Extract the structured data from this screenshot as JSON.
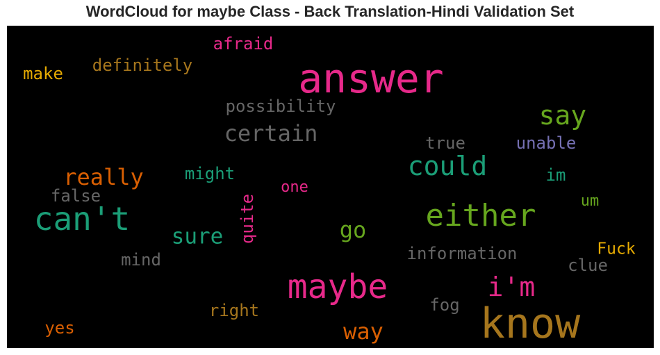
{
  "title": "WordCloud for maybe Class - Back Translation-Hindi Validation Set",
  "chart_data": {
    "type": "wordcloud",
    "words": [
      {
        "text": "answer",
        "color": "#e7298a"
      },
      {
        "text": "know",
        "color": "#a6761d"
      },
      {
        "text": "maybe",
        "color": "#e7298a"
      },
      {
        "text": "can't",
        "color": "#1b9e77"
      },
      {
        "text": "either",
        "color": "#66a61e"
      },
      {
        "text": "could",
        "color": "#1b9e77"
      },
      {
        "text": "say",
        "color": "#66a61e"
      },
      {
        "text": "i'm",
        "color": "#e7298a"
      },
      {
        "text": "certain",
        "color": "#666666"
      },
      {
        "text": "really",
        "color": "#d95f02"
      },
      {
        "text": "sure",
        "color": "#1b9e77"
      },
      {
        "text": "go",
        "color": "#66a61e"
      },
      {
        "text": "way",
        "color": "#d95f02"
      },
      {
        "text": "definitely",
        "color": "#a6761d"
      },
      {
        "text": "possibility",
        "color": "#666666"
      },
      {
        "text": "afraid",
        "color": "#e7298a"
      },
      {
        "text": "make",
        "color": "#e6ab02"
      },
      {
        "text": "information",
        "color": "#666666"
      },
      {
        "text": "might",
        "color": "#1b9e77"
      },
      {
        "text": "quite",
        "color": "#e7298a"
      },
      {
        "text": "true",
        "color": "#666666"
      },
      {
        "text": "unable",
        "color": "#7570b3"
      },
      {
        "text": "false",
        "color": "#666666"
      },
      {
        "text": "one",
        "color": "#e7298a"
      },
      {
        "text": "im",
        "color": "#1b9e77"
      },
      {
        "text": "um",
        "color": "#66a61e"
      },
      {
        "text": "mind",
        "color": "#666666"
      },
      {
        "text": "Fuck",
        "color": "#e6ab02"
      },
      {
        "text": "clue",
        "color": "#666666"
      },
      {
        "text": "right",
        "color": "#a6761d"
      },
      {
        "text": "fog",
        "color": "#666666"
      },
      {
        "text": "yes",
        "color": "#d95f02"
      }
    ]
  }
}
